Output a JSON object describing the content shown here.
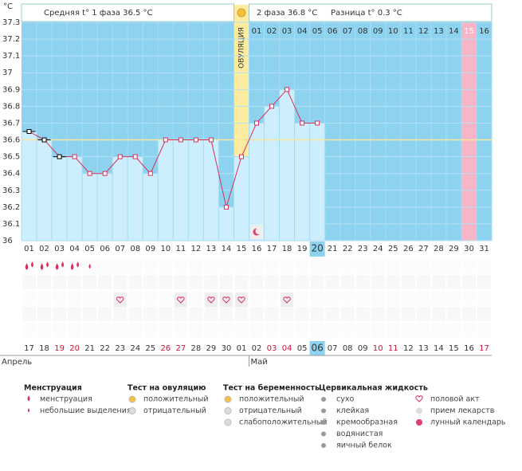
{
  "chart_data": {
    "type": "line",
    "unit": "°C",
    "header": {
      "phase1": "Средняя t° 1 фаза 36.5 °C",
      "phase2": "2 фаза 36.8 °C",
      "diff": "Разница t° 0.3 °C"
    },
    "ovulation_label": "ОВУЛЯЦИЯ",
    "categories": [
      "01",
      "02",
      "03",
      "04",
      "05",
      "06",
      "07",
      "08",
      "09",
      "10",
      "11",
      "12",
      "13",
      "14",
      "15",
      "16",
      "17",
      "18",
      "19",
      "20",
      "21",
      "22",
      "23",
      "24",
      "25",
      "26",
      "27",
      "28",
      "29",
      "30",
      "31"
    ],
    "values": [
      36.65,
      36.6,
      36.5,
      36.5,
      36.4,
      36.4,
      36.5,
      36.5,
      36.4,
      36.6,
      36.6,
      36.6,
      36.6,
      36.2,
      36.5,
      36.7,
      36.8,
      36.9,
      36.7,
      36.7,
      null,
      null,
      null,
      null,
      null,
      null,
      null,
      null,
      null,
      null,
      null
    ],
    "color": "#d9305c",
    "excluded_days": [
      1,
      2,
      3
    ],
    "coverline": 36.6,
    "ylim": [
      36,
      37.3
    ],
    "yticks": [
      36,
      36.1,
      36.2,
      36.3,
      36.4,
      36.5,
      36.6,
      36.7,
      36.8,
      36.9,
      37,
      37.1,
      37.2,
      37.3
    ],
    "phase2_days": [
      "01",
      "02",
      "03",
      "04",
      "05",
      "06",
      "07",
      "08",
      "09",
      "10",
      "11",
      "12",
      "13",
      "14",
      "15",
      "16"
    ],
    "ovulation_day": 15,
    "highlight_day": 30,
    "today": 20,
    "menstruation": [
      "heavy",
      "heavy",
      "heavy",
      "heavy",
      "light"
    ],
    "intercourse_days": [
      7,
      11,
      13,
      14,
      15,
      18
    ],
    "lunar_days": [
      16
    ],
    "dates": [
      {
        "label": "17",
        "weekend": false
      },
      {
        "label": "18",
        "weekend": false
      },
      {
        "label": "19",
        "weekend": true
      },
      {
        "label": "20",
        "weekend": true
      },
      {
        "label": "21",
        "weekend": false
      },
      {
        "label": "22",
        "weekend": false
      },
      {
        "label": "23",
        "weekend": false
      },
      {
        "label": "24",
        "weekend": false
      },
      {
        "label": "25",
        "weekend": false
      },
      {
        "label": "26",
        "weekend": true
      },
      {
        "label": "27",
        "weekend": true
      },
      {
        "label": "28",
        "weekend": false
      },
      {
        "label": "29",
        "weekend": false
      },
      {
        "label": "30",
        "weekend": false
      },
      {
        "label": "01",
        "weekend": false
      },
      {
        "label": "02",
        "weekend": false
      },
      {
        "label": "03",
        "weekend": true
      },
      {
        "label": "04",
        "weekend": true
      },
      {
        "label": "05",
        "weekend": false
      },
      {
        "label": "06",
        "weekend": false
      },
      {
        "label": "07",
        "weekend": false
      },
      {
        "label": "08",
        "weekend": false
      },
      {
        "label": "09",
        "weekend": false
      },
      {
        "label": "10",
        "weekend": true
      },
      {
        "label": "11",
        "weekend": true
      },
      {
        "label": "12",
        "weekend": false
      },
      {
        "label": "13",
        "weekend": false
      },
      {
        "label": "14",
        "weekend": false
      },
      {
        "label": "15",
        "weekend": false
      },
      {
        "label": "16",
        "weekend": false
      },
      {
        "label": "17",
        "weekend": true
      }
    ],
    "months": [
      {
        "label": "Апрель",
        "day": 1
      },
      {
        "label": "Май",
        "day": 15
      }
    ]
  },
  "legend": [
    {
      "title": "Менструация",
      "items": [
        "менструация",
        "небольшие выделения"
      ]
    },
    {
      "title": "Тест на овуляцию",
      "items": [
        "положительный",
        "отрицательный"
      ]
    },
    {
      "title": "Тест на беременность",
      "items": [
        "положительный",
        "отрицательный",
        "слабоположительный"
      ]
    },
    {
      "title": "Цервикальная жидкость",
      "items": [
        "сухо",
        "клейкая",
        "кремообразная",
        "водянистая",
        "яичный белок"
      ]
    },
    {
      "items": [
        "половой акт",
        "прием лекарств",
        "лунный календарь"
      ]
    }
  ]
}
